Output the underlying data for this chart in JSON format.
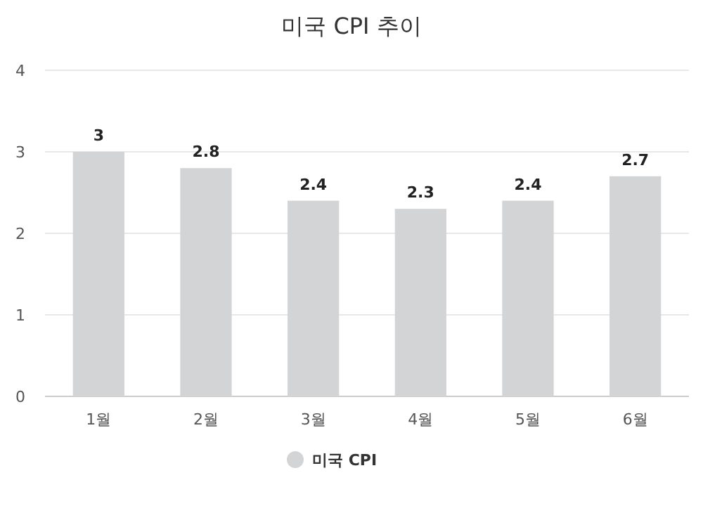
{
  "chart_data": {
    "type": "bar",
    "title": "미국 CPI 추이",
    "categories": [
      "1월",
      "2월",
      "3월",
      "4월",
      "5월",
      "6월"
    ],
    "series": [
      {
        "name": "미국 CPI",
        "color": "#d3d4d6",
        "values": [
          3,
          2.8,
          2.4,
          2.3,
          2.4,
          2.7
        ]
      }
    ],
    "ylim": [
      0,
      4
    ],
    "yticks": [
      0,
      1,
      2,
      3,
      4
    ],
    "grid": "y",
    "legend": "bottom",
    "data_labels": true
  }
}
